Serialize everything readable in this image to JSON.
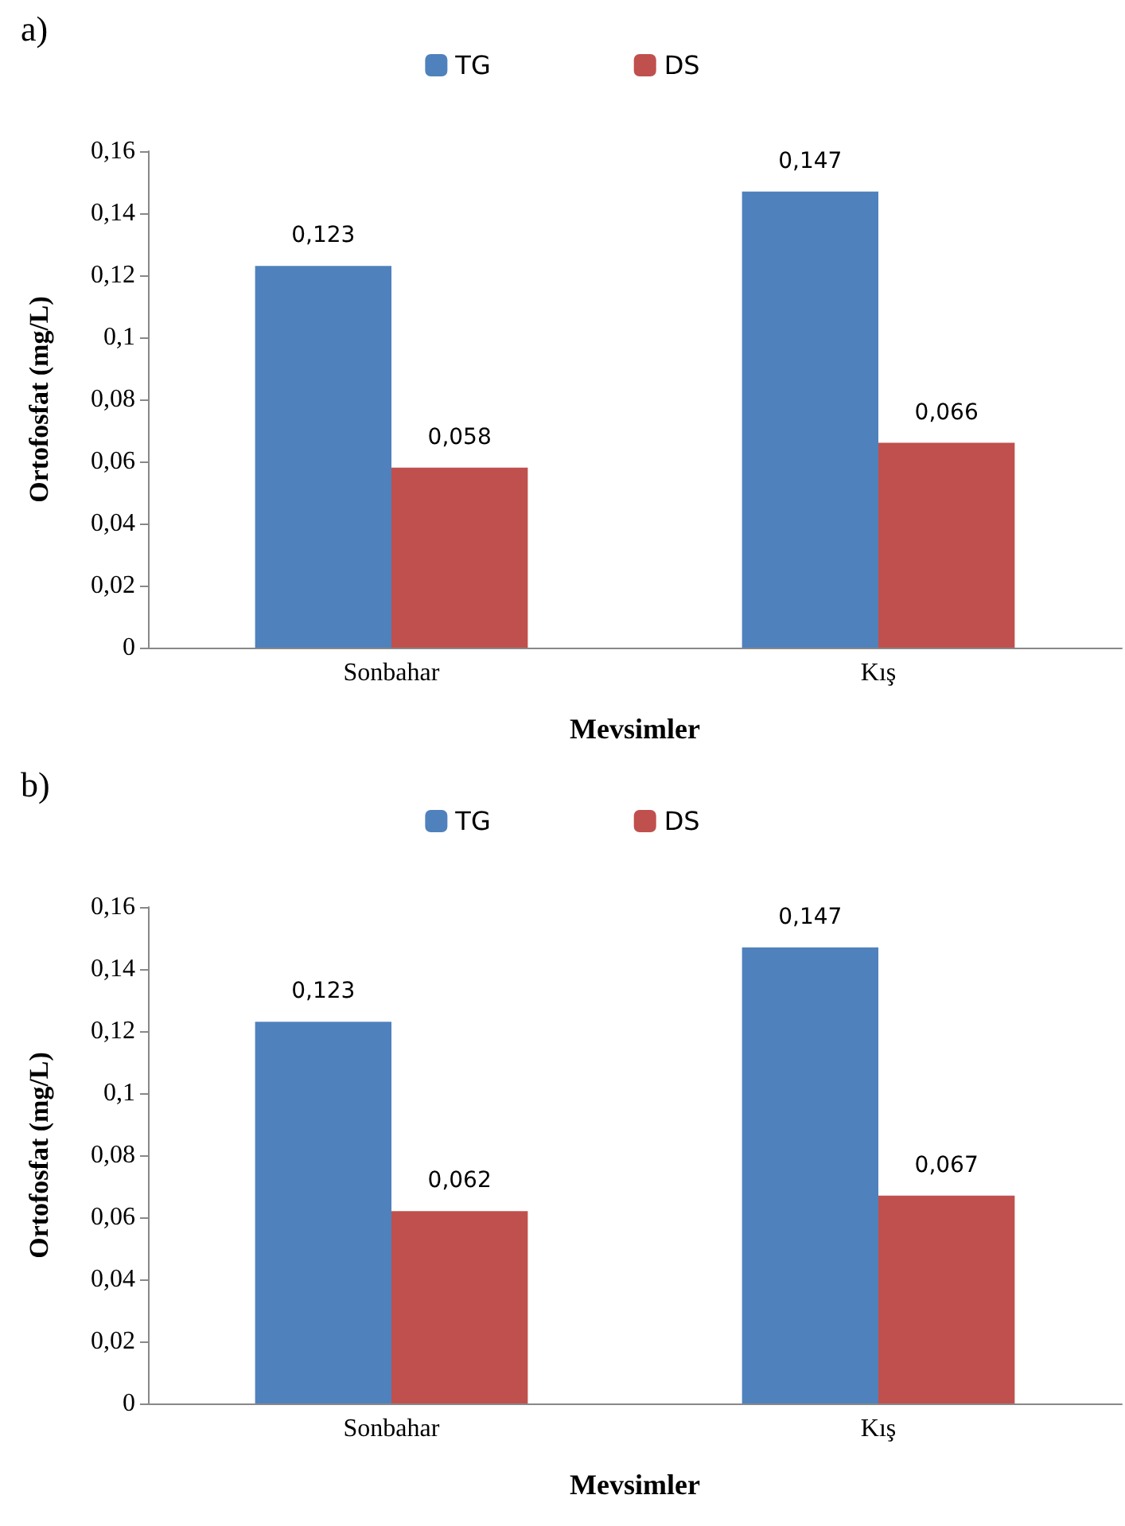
{
  "chart_data": [
    {
      "type": "bar",
      "title": "a)",
      "xlabel": "Mevsimler",
      "ylabel": "Ortofosfat (mg/L)",
      "categories": [
        "Sonbahar",
        "Kış"
      ],
      "series": [
        {
          "name": "TG",
          "color": "#4f81bd",
          "values": [
            0.123,
            0.147
          ],
          "value_labels": [
            "0,123",
            "0,147"
          ]
        },
        {
          "name": "DS",
          "color": "#c0504d",
          "values": [
            0.058,
            0.066
          ],
          "value_labels": [
            "0,058",
            "0,066"
          ]
        }
      ],
      "ylim": [
        0,
        0.16
      ],
      "yticks": [
        0,
        {
          "value": 0.02,
          "label": "0,02"
        },
        {
          "value": 0.04,
          "label": "0,04"
        },
        {
          "value": 0.06,
          "label": "0,06"
        },
        {
          "value": 0.08,
          "label": "0,08"
        },
        {
          "value": 0.1,
          "label": "0,1"
        },
        {
          "value": 0.12,
          "label": "0,12"
        },
        {
          "value": 0.14,
          "label": "0,14"
        },
        {
          "value": 0.16,
          "label": "0,16"
        }
      ],
      "legend": "top"
    },
    {
      "type": "bar",
      "title": "b)",
      "xlabel": "Mevsimler",
      "ylabel": "Ortofosfat (mg/L)",
      "categories": [
        "Sonbahar",
        "Kış"
      ],
      "series": [
        {
          "name": "TG",
          "color": "#4f81bd",
          "values": [
            0.123,
            0.147
          ],
          "value_labels": [
            "0,123",
            "0,147"
          ]
        },
        {
          "name": "DS",
          "color": "#c0504d",
          "values": [
            0.062,
            0.067
          ],
          "value_labels": [
            "0,062",
            "0,067"
          ]
        }
      ],
      "ylim": [
        0,
        0.16
      ],
      "yticks": [
        0,
        {
          "value": 0.02,
          "label": "0,02"
        },
        {
          "value": 0.04,
          "label": "0,04"
        },
        {
          "value": 0.06,
          "label": "0,06"
        },
        {
          "value": 0.08,
          "label": "0,08"
        },
        {
          "value": 0.1,
          "label": "0,1"
        },
        {
          "value": 0.12,
          "label": "0,12"
        },
        {
          "value": 0.14,
          "label": "0,14"
        },
        {
          "value": 0.16,
          "label": "0,16"
        }
      ],
      "legend": "top"
    }
  ]
}
